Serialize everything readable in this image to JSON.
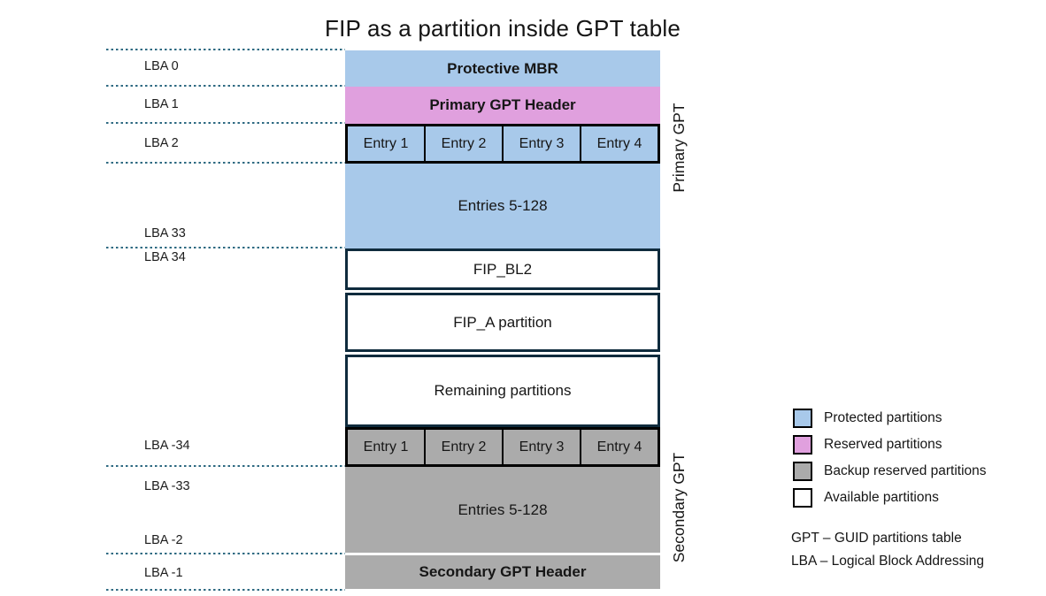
{
  "title": "FIP as a partition inside GPT table",
  "lba_labels": [
    "LBA 0",
    "LBA 1",
    "LBA 2",
    "LBA 33",
    "LBA 34",
    "LBA -34",
    "LBA -33",
    "LBA -2",
    "LBA -1"
  ],
  "diagram": {
    "protective_mbr": "Protective MBR",
    "primary_gpt_header": "Primary GPT Header",
    "entry_labels": [
      "Entry 1",
      "Entry 2",
      "Entry 3",
      "Entry 4"
    ],
    "entries_5_128": "Entries 5-128",
    "fip_bl2": "FIP_BL2",
    "fip_a_partition": "FIP_A partition",
    "remaining_partitions": "Remaining partitions",
    "secondary_entries_5_128": "Entries 5-128",
    "secondary_gpt_header": "Secondary GPT Header"
  },
  "side_labels": {
    "primary": "Primary GPT",
    "secondary": "Secondary GPT"
  },
  "legend": {
    "items": [
      {
        "label": "Protected partitions",
        "color": "#a8c9ea"
      },
      {
        "label": "Reserved partitions",
        "color": "#e0a0de"
      },
      {
        "label": "Backup reserved partitions",
        "color": "#ababab"
      },
      {
        "label": "Available partitions",
        "color": "#ffffff"
      }
    ]
  },
  "abbreviations": [
    "GPT – GUID partitions table",
    "LBA – Logical Block Addressing"
  ],
  "colors": {
    "protected": "#a8c9ea",
    "reserved": "#e0a0de",
    "backup_reserved": "#ababab",
    "available": "#ffffff",
    "available_block_border": "#0f2b3d",
    "entry_grid_border": "#000000",
    "dotted_divider": "#2e6a82"
  }
}
